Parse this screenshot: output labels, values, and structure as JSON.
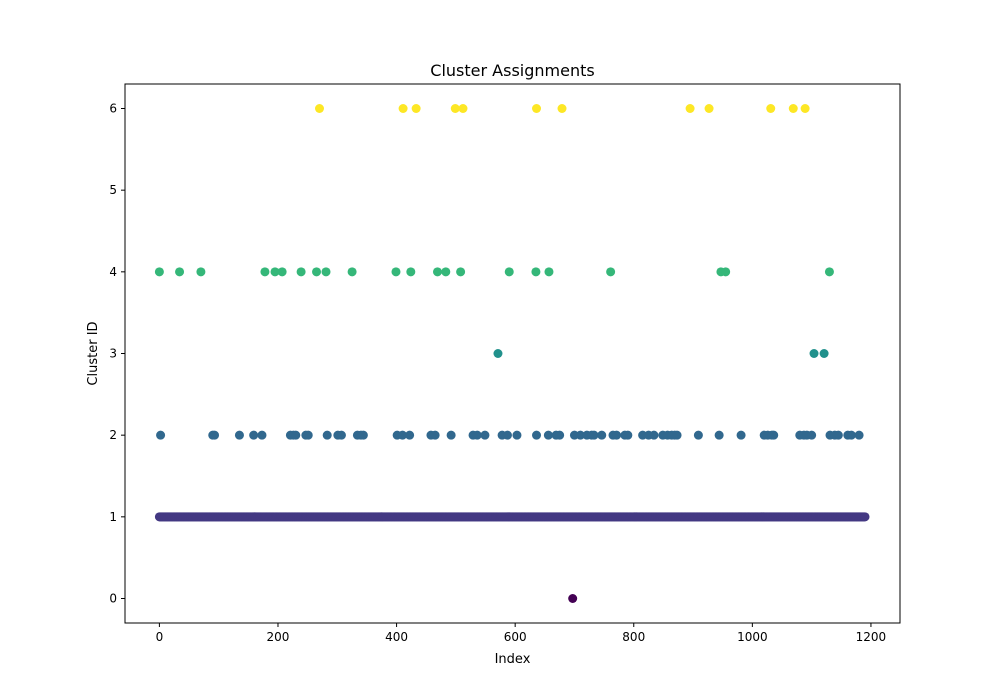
{
  "chart_data": {
    "type": "scatter",
    "title": "Cluster Assignments",
    "xlabel": "Index",
    "ylabel": "Cluster ID",
    "xlim": [
      -58,
      1249
    ],
    "ylim": [
      -0.3,
      6.3
    ],
    "x_ticks": [
      0,
      200,
      400,
      600,
      800,
      1000,
      1200
    ],
    "y_ticks": [
      0,
      1,
      2,
      3,
      4,
      5,
      6
    ],
    "grid": false,
    "legend": "none",
    "colormap": "viridis",
    "cluster_colors": {
      "0": "#440154",
      "1": "#443983",
      "2": "#31688e",
      "3": "#21918c",
      "4": "#35b779",
      "6": "#fde725"
    },
    "dense_series": {
      "y": 1,
      "x_start": 0,
      "x_end": 1190,
      "step": 1
    },
    "points": [
      {
        "x": 0,
        "y": 4
      },
      {
        "x": 34,
        "y": 4
      },
      {
        "x": 70,
        "y": 4
      },
      {
        "x": 178,
        "y": 4
      },
      {
        "x": 195,
        "y": 4
      },
      {
        "x": 207,
        "y": 4
      },
      {
        "x": 239,
        "y": 4
      },
      {
        "x": 265,
        "y": 4
      },
      {
        "x": 281,
        "y": 4
      },
      {
        "x": 325,
        "y": 4
      },
      {
        "x": 399,
        "y": 4
      },
      {
        "x": 424,
        "y": 4
      },
      {
        "x": 469,
        "y": 4
      },
      {
        "x": 483,
        "y": 4
      },
      {
        "x": 508,
        "y": 4
      },
      {
        "x": 590,
        "y": 4
      },
      {
        "x": 635,
        "y": 4
      },
      {
        "x": 657,
        "y": 4
      },
      {
        "x": 761,
        "y": 4
      },
      {
        "x": 947,
        "y": 4
      },
      {
        "x": 955,
        "y": 4
      },
      {
        "x": 1130,
        "y": 4
      },
      {
        "x": 270,
        "y": 6
      },
      {
        "x": 411,
        "y": 6
      },
      {
        "x": 433,
        "y": 6
      },
      {
        "x": 499,
        "y": 6
      },
      {
        "x": 512,
        "y": 6
      },
      {
        "x": 636,
        "y": 6
      },
      {
        "x": 679,
        "y": 6
      },
      {
        "x": 895,
        "y": 6
      },
      {
        "x": 927,
        "y": 6
      },
      {
        "x": 1031,
        "y": 6
      },
      {
        "x": 1069,
        "y": 6
      },
      {
        "x": 1089,
        "y": 6
      },
      {
        "x": 571,
        "y": 3
      },
      {
        "x": 1104,
        "y": 3
      },
      {
        "x": 1121,
        "y": 3
      },
      {
        "x": 697,
        "y": 0
      },
      {
        "x": 2,
        "y": 2
      },
      {
        "x": 90,
        "y": 2
      },
      {
        "x": 93,
        "y": 2
      },
      {
        "x": 135,
        "y": 2
      },
      {
        "x": 159,
        "y": 2
      },
      {
        "x": 173,
        "y": 2
      },
      {
        "x": 221,
        "y": 2
      },
      {
        "x": 226,
        "y": 2
      },
      {
        "x": 230,
        "y": 2
      },
      {
        "x": 247,
        "y": 2
      },
      {
        "x": 251,
        "y": 2
      },
      {
        "x": 283,
        "y": 2
      },
      {
        "x": 301,
        "y": 2
      },
      {
        "x": 307,
        "y": 2
      },
      {
        "x": 334,
        "y": 2
      },
      {
        "x": 340,
        "y": 2
      },
      {
        "x": 344,
        "y": 2
      },
      {
        "x": 401,
        "y": 2
      },
      {
        "x": 410,
        "y": 2
      },
      {
        "x": 422,
        "y": 2
      },
      {
        "x": 458,
        "y": 2
      },
      {
        "x": 465,
        "y": 2
      },
      {
        "x": 492,
        "y": 2
      },
      {
        "x": 529,
        "y": 2
      },
      {
        "x": 536,
        "y": 2
      },
      {
        "x": 549,
        "y": 2
      },
      {
        "x": 578,
        "y": 2
      },
      {
        "x": 587,
        "y": 2
      },
      {
        "x": 603,
        "y": 2
      },
      {
        "x": 636,
        "y": 2
      },
      {
        "x": 656,
        "y": 2
      },
      {
        "x": 669,
        "y": 2
      },
      {
        "x": 675,
        "y": 2
      },
      {
        "x": 700,
        "y": 2
      },
      {
        "x": 710,
        "y": 2
      },
      {
        "x": 721,
        "y": 2
      },
      {
        "x": 729,
        "y": 2
      },
      {
        "x": 733,
        "y": 2
      },
      {
        "x": 746,
        "y": 2
      },
      {
        "x": 765,
        "y": 2
      },
      {
        "x": 771,
        "y": 2
      },
      {
        "x": 785,
        "y": 2
      },
      {
        "x": 790,
        "y": 2
      },
      {
        "x": 815,
        "y": 2
      },
      {
        "x": 825,
        "y": 2
      },
      {
        "x": 834,
        "y": 2
      },
      {
        "x": 849,
        "y": 2
      },
      {
        "x": 857,
        "y": 2
      },
      {
        "x": 864,
        "y": 2
      },
      {
        "x": 869,
        "y": 2
      },
      {
        "x": 873,
        "y": 2
      },
      {
        "x": 909,
        "y": 2
      },
      {
        "x": 944,
        "y": 2
      },
      {
        "x": 981,
        "y": 2
      },
      {
        "x": 1020,
        "y": 2
      },
      {
        "x": 1026,
        "y": 2
      },
      {
        "x": 1033,
        "y": 2
      },
      {
        "x": 1036,
        "y": 2
      },
      {
        "x": 1080,
        "y": 2
      },
      {
        "x": 1087,
        "y": 2
      },
      {
        "x": 1092,
        "y": 2
      },
      {
        "x": 1100,
        "y": 2
      },
      {
        "x": 1131,
        "y": 2
      },
      {
        "x": 1139,
        "y": 2
      },
      {
        "x": 1145,
        "y": 2
      },
      {
        "x": 1161,
        "y": 2
      },
      {
        "x": 1167,
        "y": 2
      },
      {
        "x": 1180,
        "y": 2
      }
    ]
  }
}
